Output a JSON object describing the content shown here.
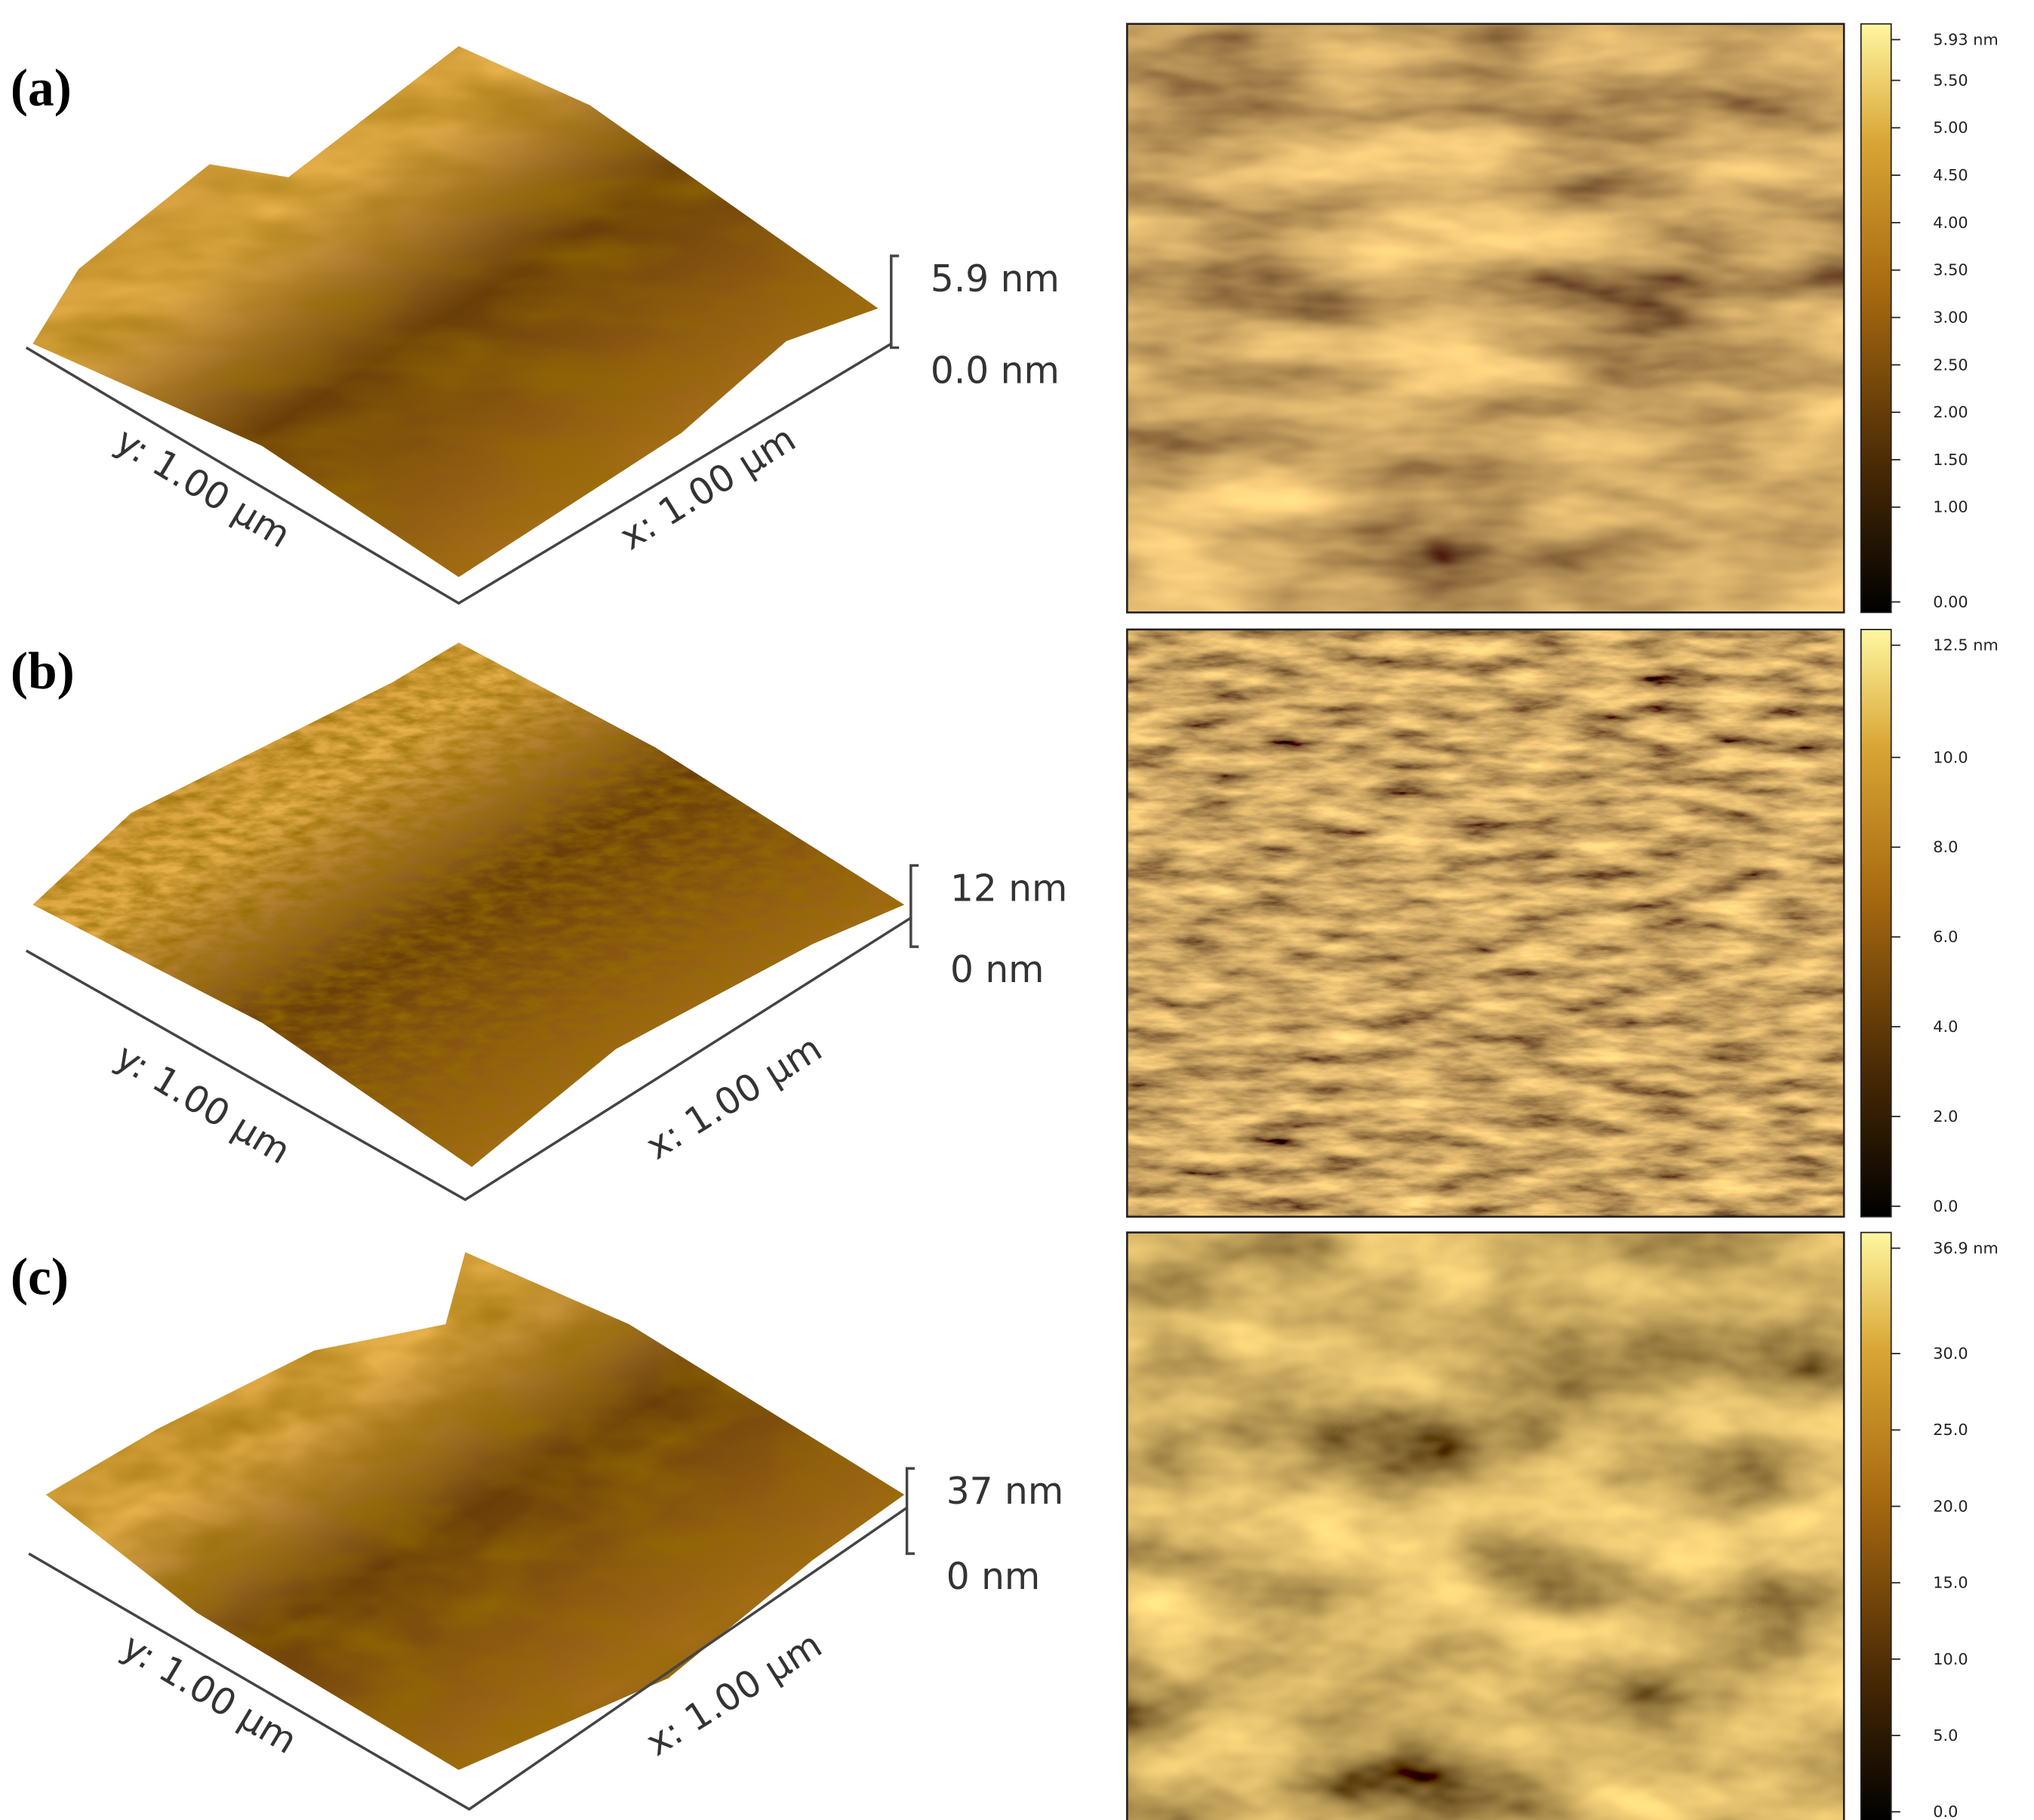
{
  "panels": [
    {
      "label": "(a)",
      "height_max": "5.9 nm",
      "height_min": "0.0 nm",
      "y_axis": "y: 1.00 µm",
      "x_axis": "x: 1.00 µm",
      "colorbar": [
        "5.93 nm",
        "5.50",
        "5.00",
        "4.50",
        "4.00",
        "3.50",
        "3.00",
        "2.50",
        "2.00",
        "1.50",
        "1.00",
        "0.00"
      ]
    },
    {
      "label": "(b)",
      "height_max": "12 nm",
      "height_min": "0 nm",
      "y_axis": "y: 1.00 µm",
      "x_axis": "x: 1.00 µm",
      "colorbar": [
        "12.5 nm",
        "10.0",
        "8.0",
        "6.0",
        "4.0",
        "2.0",
        "0.0"
      ]
    },
    {
      "label": "(c)",
      "height_max": "37 nm",
      "height_min": "0 nm",
      "y_axis": "y: 1.00 µm",
      "x_axis": "x: 1.00 µm",
      "colorbar": [
        "36.9 nm",
        "30.0",
        "25.0",
        "20.0",
        "15.0",
        "10.0",
        "5.0",
        "0.0"
      ]
    }
  ]
}
